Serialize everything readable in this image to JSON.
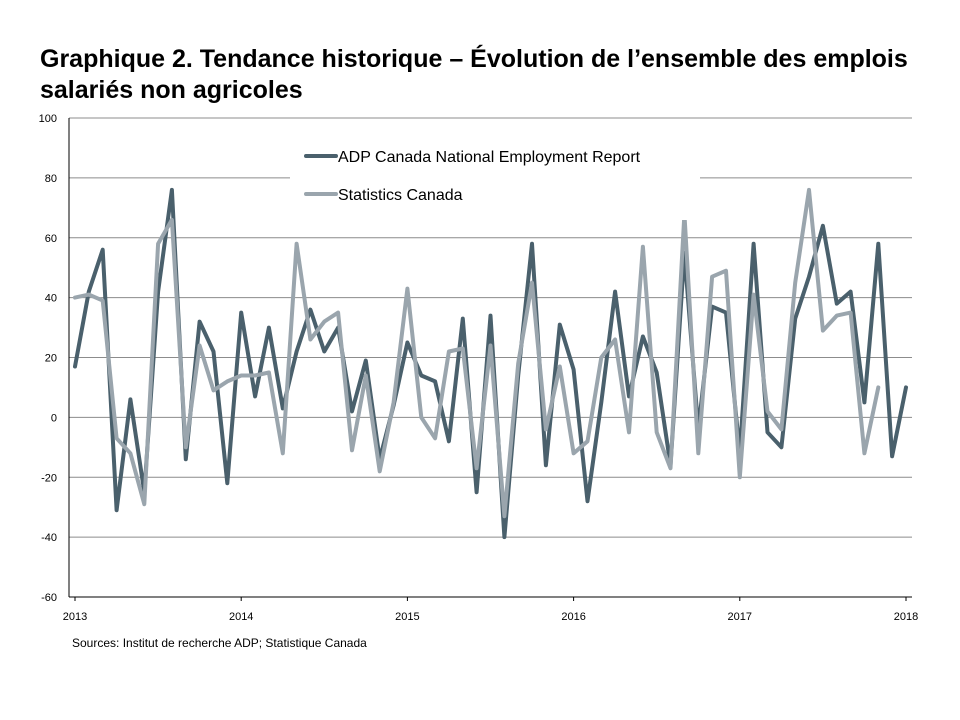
{
  "chart_data": {
    "type": "line",
    "title": "Graphique 2. Tendance historique – Évolution de l’ensemble des emplois salariés non agricoles",
    "xlabel": "",
    "ylabel": "",
    "ylim": [
      -60,
      100
    ],
    "yticks": [
      -60,
      -40,
      -20,
      0,
      20,
      40,
      60,
      80,
      100
    ],
    "xticks": [
      "2013",
      "2014",
      "2015",
      "2016",
      "2017",
      "2018"
    ],
    "xlim": [
      "2013-01",
      "2018-01"
    ],
    "grid": true,
    "legend": "top-center",
    "series": [
      {
        "name": "ADP Canada National Employment Report",
        "color": "#4a606c",
        "x": [
          "2013-01",
          "2013-02",
          "2013-03",
          "2013-04",
          "2013-05",
          "2013-06",
          "2013-07",
          "2013-08",
          "2013-09",
          "2013-10",
          "2013-11",
          "2013-12",
          "2014-01",
          "2014-02",
          "2014-03",
          "2014-04",
          "2014-05",
          "2014-06",
          "2014-07",
          "2014-08",
          "2014-09",
          "2014-10",
          "2014-11",
          "2014-12",
          "2015-01",
          "2015-02",
          "2015-03",
          "2015-04",
          "2015-05",
          "2015-06",
          "2015-07",
          "2015-08",
          "2015-09",
          "2015-10",
          "2015-11",
          "2015-12",
          "2016-01",
          "2016-02",
          "2016-03",
          "2016-04",
          "2016-05",
          "2016-06",
          "2016-07",
          "2016-08",
          "2016-09",
          "2016-10",
          "2016-11",
          "2016-12",
          "2017-01",
          "2017-02",
          "2017-03",
          "2017-04",
          "2017-05",
          "2017-06",
          "2017-07",
          "2017-08",
          "2017-09",
          "2017-10",
          "2017-11",
          "2017-12",
          "2018-01"
        ],
        "values": [
          17,
          42,
          56,
          -31,
          6,
          -25,
          42,
          76,
          -14,
          32,
          22,
          -22,
          35,
          7,
          30,
          3,
          22,
          36,
          22,
          30,
          2,
          19,
          -14,
          4,
          25,
          14,
          12,
          -8,
          33,
          -25,
          34,
          -40,
          14,
          58,
          -16,
          31,
          16,
          -28,
          5,
          42,
          7,
          27,
          15,
          -16,
          55,
          -4,
          37,
          35,
          -12,
          58,
          -5,
          -10,
          33,
          47,
          64,
          38,
          42,
          5,
          58,
          -13,
          10
        ]
      },
      {
        "name": "Statistics Canada",
        "color": "#9aa5ad",
        "x": [
          "2013-01",
          "2013-02",
          "2013-03",
          "2013-04",
          "2013-05",
          "2013-06",
          "2013-07",
          "2013-08",
          "2013-09",
          "2013-10",
          "2013-11",
          "2013-12",
          "2014-01",
          "2014-02",
          "2014-03",
          "2014-04",
          "2014-05",
          "2014-06",
          "2014-07",
          "2014-08",
          "2014-09",
          "2014-10",
          "2014-11",
          "2014-12",
          "2015-01",
          "2015-02",
          "2015-03",
          "2015-04",
          "2015-05",
          "2015-06",
          "2015-07",
          "2015-08",
          "2015-09",
          "2015-10",
          "2015-11",
          "2015-12",
          "2016-01",
          "2016-02",
          "2016-03",
          "2016-04",
          "2016-05",
          "2016-06",
          "2016-07",
          "2016-08",
          "2016-09",
          "2016-10",
          "2016-11",
          "2016-12",
          "2017-01",
          "2017-02",
          "2017-03",
          "2017-04",
          "2017-05",
          "2017-06",
          "2017-07",
          "2017-08",
          "2017-09",
          "2017-10",
          "2017-11"
        ],
        "values": [
          40,
          41,
          39,
          -7,
          -12,
          -29,
          58,
          66,
          -10,
          24,
          9,
          12,
          14,
          14,
          15,
          -12,
          58,
          26,
          32,
          35,
          -11,
          14,
          -18,
          5,
          43,
          0,
          -7,
          22,
          23,
          -17,
          24,
          -33,
          18,
          45,
          -4,
          17,
          -12,
          -8,
          20,
          26,
          -5,
          57,
          -5,
          -17,
          68,
          -12,
          47,
          49,
          -20,
          41,
          2,
          -4,
          45,
          76,
          29,
          34,
          35,
          -12,
          10
        ]
      }
    ]
  },
  "source_note": "Sources: Institut de recherche  ADP; Statistique Canada"
}
